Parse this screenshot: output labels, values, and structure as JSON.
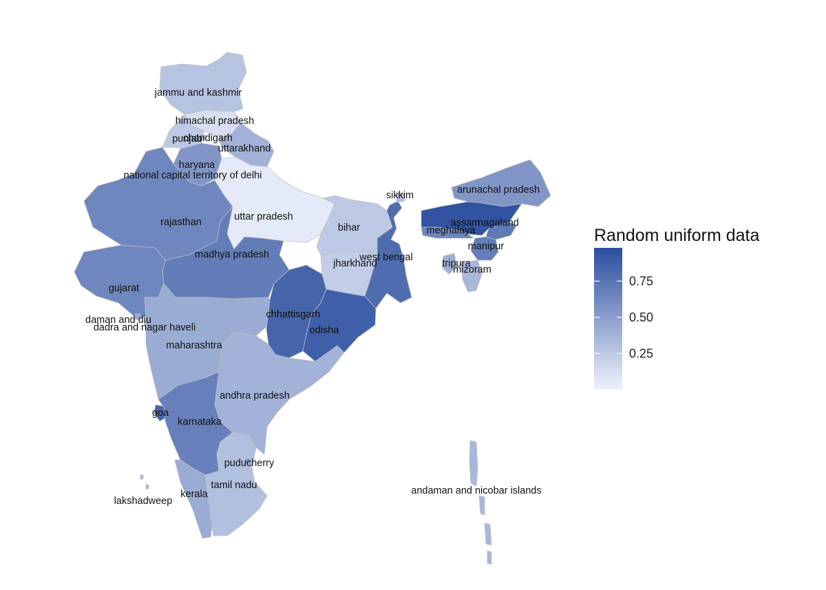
{
  "legend": {
    "title": "Random uniform data",
    "ticks": [
      {
        "value": 0.75,
        "label": "0.75"
      },
      {
        "value": 0.5,
        "label": "0.50"
      },
      {
        "value": 0.25,
        "label": "0.25"
      }
    ],
    "range": [
      0.0,
      0.98
    ],
    "low_color": "#eef2fc",
    "high_color": "#2b4e9e"
  },
  "states": [
    {
      "label": "jammu and kashmir",
      "value": 0.28
    },
    {
      "label": "himachal pradesh",
      "value": 0.12
    },
    {
      "label": "punjab",
      "value": 0.25
    },
    {
      "label": "chandigarh",
      "value": 0.3
    },
    {
      "label": "uttarakhand",
      "value": 0.38
    },
    {
      "label": "haryana",
      "value": 0.55
    },
    {
      "label": "national capital territory of delhi",
      "value": 0.6
    },
    {
      "label": "rajasthan",
      "value": 0.64
    },
    {
      "label": "uttar pradesh",
      "value": 0.05
    },
    {
      "label": "madhya pradesh",
      "value": 0.7
    },
    {
      "label": "gujarat",
      "value": 0.64
    },
    {
      "label": "daman and diu",
      "value": 0.45
    },
    {
      "label": "dadra and nagar haveli",
      "value": 0.4
    },
    {
      "label": "maharashtra",
      "value": 0.42
    },
    {
      "label": "goa",
      "value": 0.85
    },
    {
      "label": "karnataka",
      "value": 0.68
    },
    {
      "label": "kerala",
      "value": 0.42
    },
    {
      "label": "lakshadweep",
      "value": 0.35
    },
    {
      "label": "tamil nadu",
      "value": 0.3
    },
    {
      "label": "puducherry",
      "value": 0.55
    },
    {
      "label": "andhra pradesh",
      "value": 0.38
    },
    {
      "label": "chhattisgarh",
      "value": 0.85
    },
    {
      "label": "odisha",
      "value": 0.88
    },
    {
      "label": "jharkhand",
      "value": 0.22
    },
    {
      "label": "bihar",
      "value": 0.25
    },
    {
      "label": "west bengal",
      "value": 0.8
    },
    {
      "label": "sikkim",
      "value": 0.3
    },
    {
      "label": "arunachal pradesh",
      "value": 0.55
    },
    {
      "label": "assam",
      "value": 0.95
    },
    {
      "label": "meghalaya",
      "value": 0.65
    },
    {
      "label": "nagaland",
      "value": 0.72
    },
    {
      "label": "manipur",
      "value": 0.7
    },
    {
      "label": "mizoram",
      "value": 0.35
    },
    {
      "label": "tripura",
      "value": 0.4
    },
    {
      "label": "andaman and nicobar islands",
      "value": 0.35
    }
  ]
}
